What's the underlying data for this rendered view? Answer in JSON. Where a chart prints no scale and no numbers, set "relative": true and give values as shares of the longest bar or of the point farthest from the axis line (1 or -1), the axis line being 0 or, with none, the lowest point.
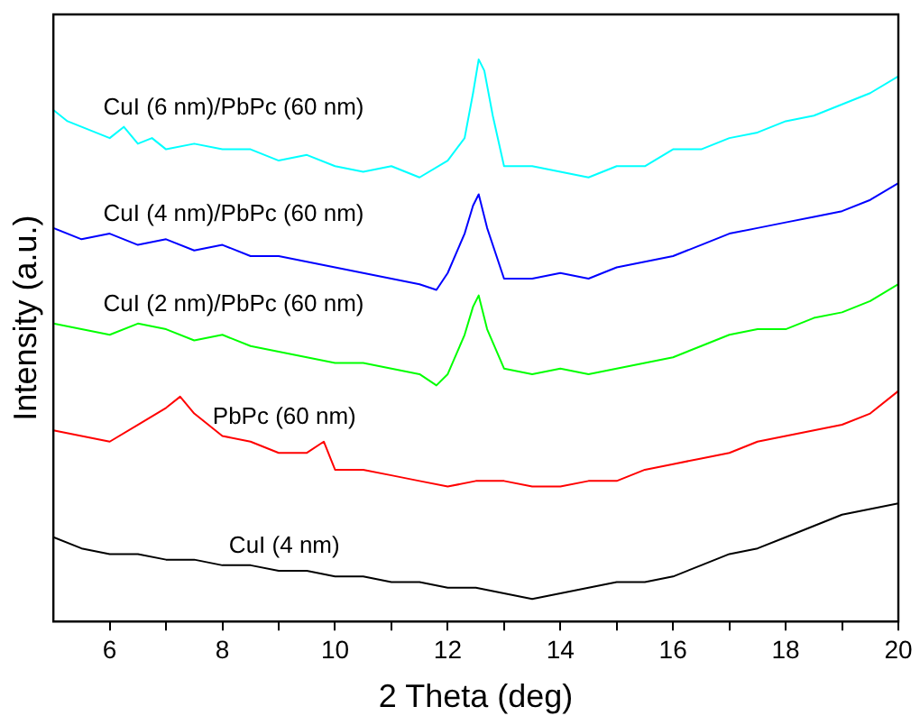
{
  "chart_data": {
    "type": "line",
    "relative": true,
    "xlabel": "2 Theta (deg)",
    "ylabel": "Intensity (a.u.)",
    "xlim": [
      5,
      20
    ],
    "xticks": [
      6,
      {
        "value": 7,
        "label": null
      },
      8,
      {
        "value": 9,
        "label": null
      },
      10,
      {
        "value": 11,
        "label": null
      },
      12,
      {
        "value": 13,
        "label": null
      },
      14,
      {
        "value": 15,
        "label": null
      },
      16,
      {
        "value": 17,
        "label": null
      },
      18,
      {
        "value": 19,
        "label": null
      },
      20
    ],
    "grid": false,
    "legend": false,
    "marker": "none",
    "line_style": "solid",
    "tick_labels": "x",
    "series": [
      {
        "name": "CuI (6 nm)/PbPc (60 nm)",
        "color": "#00ffff",
        "x": [
          5,
          5.25,
          5.5,
          5.75,
          6,
          6.25,
          6.5,
          6.75,
          7,
          7.5,
          8,
          8.5,
          9,
          9.5,
          10,
          10.5,
          11,
          11.5,
          12,
          12.3,
          12.45,
          12.55,
          12.65,
          12.8,
          13,
          13.5,
          14,
          14.5,
          15,
          15.5,
          16,
          16.5,
          17,
          17.5,
          18,
          18.5,
          19,
          19.5,
          20
        ],
        "values": [
          0.91,
          0.89,
          0.88,
          0.87,
          0.86,
          0.88,
          0.85,
          0.86,
          0.84,
          0.85,
          0.84,
          0.84,
          0.82,
          0.83,
          0.81,
          0.8,
          0.81,
          0.79,
          0.82,
          0.86,
          0.94,
          1.0,
          0.98,
          0.9,
          0.81,
          0.81,
          0.8,
          0.79,
          0.81,
          0.81,
          0.84,
          0.84,
          0.86,
          0.87,
          0.89,
          0.9,
          0.92,
          0.94,
          0.97
        ]
      },
      {
        "name": "CuI (4 nm)/PbPc (60 nm)",
        "color": "#0000ff",
        "x": [
          5,
          5.5,
          6,
          6.5,
          7,
          7.5,
          8,
          8.5,
          9,
          9.5,
          10,
          10.5,
          11,
          11.5,
          11.8,
          12,
          12.3,
          12.45,
          12.55,
          12.7,
          13,
          13.5,
          14,
          14.5,
          15,
          15.5,
          16,
          16.5,
          17,
          17.5,
          18,
          18.5,
          19,
          19.5,
          20
        ],
        "values": [
          0.7,
          0.68,
          0.69,
          0.67,
          0.68,
          0.66,
          0.67,
          0.65,
          0.65,
          0.64,
          0.63,
          0.62,
          0.61,
          0.6,
          0.59,
          0.62,
          0.69,
          0.74,
          0.76,
          0.7,
          0.61,
          0.61,
          0.62,
          0.61,
          0.63,
          0.64,
          0.65,
          0.67,
          0.69,
          0.7,
          0.71,
          0.72,
          0.73,
          0.75,
          0.78
        ]
      },
      {
        "name": "CuI (2 nm)/PbPc (60 nm)",
        "color": "#00ff00",
        "x": [
          5,
          5.5,
          6,
          6.5,
          7,
          7.5,
          8,
          8.5,
          9,
          9.5,
          10,
          10.5,
          11,
          11.5,
          11.8,
          12,
          12.3,
          12.45,
          12.55,
          12.7,
          13,
          13.5,
          14,
          14.5,
          15,
          15.5,
          16,
          16.5,
          17,
          17.5,
          18,
          18.5,
          19,
          19.5,
          20
        ],
        "values": [
          0.53,
          0.52,
          0.51,
          0.53,
          0.52,
          0.5,
          0.51,
          0.49,
          0.48,
          0.47,
          0.46,
          0.46,
          0.45,
          0.44,
          0.42,
          0.44,
          0.51,
          0.56,
          0.58,
          0.52,
          0.45,
          0.44,
          0.45,
          0.44,
          0.45,
          0.46,
          0.47,
          0.49,
          0.51,
          0.52,
          0.52,
          0.54,
          0.55,
          0.57,
          0.6
        ]
      },
      {
        "name": "PbPc (60 nm)",
        "color": "#ff0000",
        "x": [
          5,
          5.5,
          6,
          6.5,
          7,
          7.25,
          7.5,
          8,
          8.5,
          9,
          9.5,
          9.8,
          10,
          10.5,
          11,
          11.5,
          12,
          12.5,
          13,
          13.5,
          14,
          14.5,
          15,
          15.5,
          16,
          16.5,
          17,
          17.5,
          18,
          18.5,
          19,
          19.5,
          20
        ],
        "values": [
          0.34,
          0.33,
          0.32,
          0.35,
          0.38,
          0.4,
          0.37,
          0.33,
          0.32,
          0.3,
          0.3,
          0.32,
          0.27,
          0.27,
          0.26,
          0.25,
          0.24,
          0.25,
          0.25,
          0.24,
          0.24,
          0.25,
          0.25,
          0.27,
          0.28,
          0.29,
          0.3,
          0.32,
          0.33,
          0.34,
          0.35,
          0.37,
          0.41
        ]
      },
      {
        "name": "CuI (4 nm)",
        "color": "#000000",
        "x": [
          5,
          5.5,
          6,
          6.5,
          7,
          7.5,
          8,
          8.5,
          9,
          9.5,
          10,
          10.5,
          11,
          11.5,
          12,
          12.5,
          13,
          13.5,
          14,
          14.5,
          15,
          15.5,
          16,
          16.5,
          17,
          17.5,
          18,
          18.5,
          19,
          19.5,
          20
        ],
        "values": [
          0.15,
          0.13,
          0.12,
          0.12,
          0.11,
          0.11,
          0.1,
          0.1,
          0.09,
          0.09,
          0.08,
          0.08,
          0.07,
          0.07,
          0.06,
          0.06,
          0.05,
          0.04,
          0.05,
          0.06,
          0.07,
          0.07,
          0.08,
          0.1,
          0.12,
          0.13,
          0.15,
          0.17,
          0.19,
          0.2,
          0.21
        ]
      }
    ]
  }
}
